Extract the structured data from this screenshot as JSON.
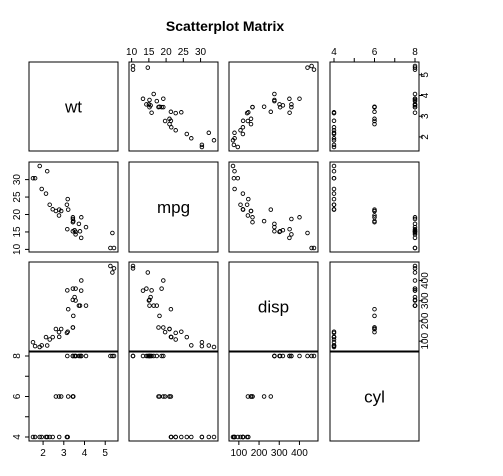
{
  "chart_data": {
    "type": "scatter",
    "subtype": "scatterplot-matrix",
    "title": "Scatterplot Matrix",
    "variables": [
      "wt",
      "mpg",
      "disp",
      "cyl"
    ],
    "ranges": {
      "wt": [
        1.513,
        5.424
      ],
      "mpg": [
        10.4,
        33.9
      ],
      "disp": [
        71.1,
        472
      ],
      "cyl": [
        4,
        8
      ]
    },
    "ticks": {
      "wt": [
        2,
        3,
        4,
        5
      ],
      "mpg": [
        10,
        15,
        20,
        25,
        30
      ],
      "disp": [
        100,
        200,
        300,
        400
      ],
      "cyl": [
        4,
        5,
        6,
        7,
        8
      ]
    },
    "tick_labels": {
      "wt": [
        "2",
        "3",
        "4",
        "5"
      ],
      "mpg": [
        "10",
        "15",
        "20",
        "25",
        "30"
      ],
      "disp": [
        "100",
        "200",
        "300",
        "400"
      ],
      "cyl": [
        "4",
        "",
        "6",
        "",
        "8"
      ]
    },
    "data": {
      "wt": [
        2.62,
        2.875,
        2.32,
        3.215,
        3.44,
        3.46,
        3.57,
        3.19,
        3.15,
        3.44,
        3.44,
        4.07,
        3.73,
        3.78,
        5.25,
        5.424,
        5.345,
        2.2,
        1.615,
        1.835,
        2.465,
        3.52,
        3.435,
        3.84,
        3.845,
        1.935,
        2.14,
        1.513,
        3.17,
        2.77,
        3.57,
        2.78
      ],
      "mpg": [
        21.0,
        21.0,
        22.8,
        21.4,
        18.7,
        18.1,
        14.3,
        24.4,
        22.8,
        19.2,
        17.8,
        16.4,
        17.3,
        15.2,
        10.4,
        10.4,
        14.7,
        32.4,
        30.4,
        33.9,
        21.5,
        15.5,
        15.2,
        13.3,
        19.2,
        27.3,
        26.0,
        30.4,
        15.8,
        19.7,
        15.0,
        21.4
      ],
      "disp": [
        160,
        160,
        108,
        258,
        360,
        225,
        360,
        146.7,
        140.8,
        167.6,
        167.6,
        275.8,
        275.8,
        275.8,
        472,
        460,
        440,
        78.7,
        75.7,
        71.1,
        120.1,
        318,
        304,
        350,
        400,
        79,
        120.3,
        95.1,
        351,
        145,
        301,
        121
      ],
      "cyl": [
        6,
        6,
        4,
        6,
        8,
        6,
        8,
        4,
        4,
        6,
        6,
        8,
        8,
        8,
        8,
        8,
        8,
        4,
        4,
        4,
        4,
        8,
        8,
        8,
        8,
        4,
        4,
        4,
        8,
        6,
        8,
        4
      ]
    },
    "axes": {
      "top": [
        "mpg",
        "cyl"
      ],
      "bottom": [
        "wt",
        "disp"
      ],
      "left": [
        "mpg",
        "cyl"
      ],
      "right": [
        "wt",
        "disp"
      ]
    },
    "grid": false,
    "legend": "none"
  }
}
